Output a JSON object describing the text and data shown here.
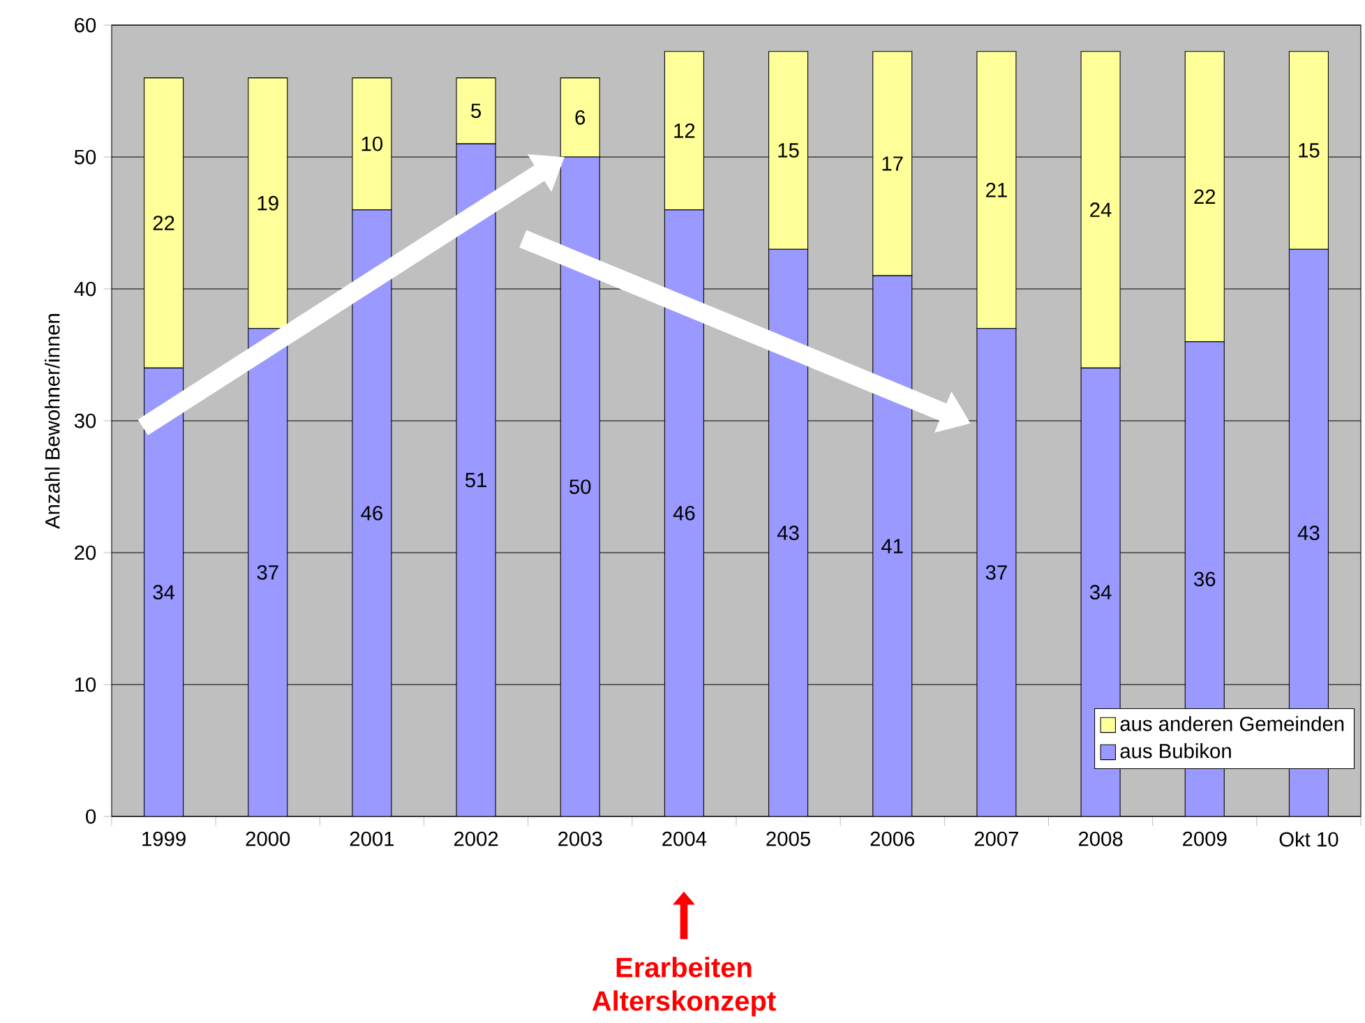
{
  "chart_data": {
    "type": "bar",
    "stacked": true,
    "categories": [
      "1999",
      "2000",
      "2001",
      "2002",
      "2003",
      "2004",
      "2005",
      "2006",
      "2007",
      "2008",
      "2009",
      "Okt 10"
    ],
    "series": [
      {
        "name": "aus Bubikon",
        "color": "#9999ff",
        "values": [
          34,
          37,
          46,
          51,
          50,
          46,
          43,
          41,
          37,
          34,
          36,
          43
        ]
      },
      {
        "name": "aus anderen Gemeinden",
        "color": "#ffff99",
        "values": [
          22,
          19,
          10,
          5,
          6,
          12,
          15,
          17,
          21,
          24,
          22,
          15
        ]
      }
    ],
    "ylabel": "Anzahl Bewohner/innen",
    "ylim": [
      0,
      60
    ],
    "yticks": [
      0,
      10,
      20,
      30,
      40,
      50,
      60
    ],
    "grid": "y",
    "legend": "bottom right",
    "data_labels": true,
    "annotations": [
      "Erarbeiten Alterskonzept"
    ]
  }
}
